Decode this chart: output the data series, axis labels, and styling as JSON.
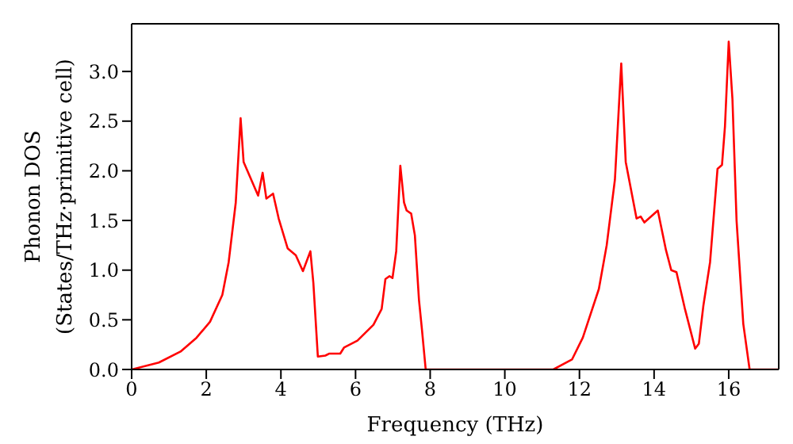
{
  "chart_data": {
    "type": "line",
    "xlabel": "Frequency (THz)",
    "ylabel": "Phonon DOS\n(States/THz·primitive cell)",
    "x": [
      0,
      0.73,
      1.31,
      1.74,
      2.1,
      2.43,
      2.6,
      2.79,
      2.92,
      3.0,
      3.39,
      3.51,
      3.61,
      3.79,
      3.94,
      4.18,
      4.4,
      4.59,
      4.79,
      4.87,
      4.99,
      5.19,
      5.3,
      5.59,
      5.69,
      6.05,
      6.48,
      6.7,
      6.8,
      6.91,
      6.99,
      7.09,
      7.2,
      7.3,
      7.37,
      7.49,
      7.59,
      7.7,
      7.78,
      7.88,
      11.3,
      11.8,
      12.09,
      12.52,
      12.73,
      12.95,
      13.12,
      13.24,
      13.53,
      13.64,
      13.74,
      14.1,
      14.32,
      14.46,
      14.6,
      14.82,
      15.1,
      15.2,
      15.32,
      15.5,
      15.7,
      15.82,
      15.9,
      16.0,
      16.1,
      16.21,
      16.39,
      16.56,
      17.34
    ],
    "series": [
      {
        "color": "#ff0000",
        "values": [
          0,
          0.07,
          0.18,
          0.32,
          0.48,
          0.75,
          1.08,
          1.68,
          2.53,
          2.09,
          1.75,
          1.98,
          1.72,
          1.77,
          1.52,
          1.22,
          1.15,
          0.99,
          1.19,
          0.87,
          0.13,
          0.14,
          0.16,
          0.16,
          0.22,
          0.29,
          0.45,
          0.61,
          0.91,
          0.94,
          0.92,
          1.19,
          2.05,
          1.68,
          1.6,
          1.57,
          1.35,
          0.7,
          0.4,
          0,
          0,
          0.1,
          0.32,
          0.81,
          1.25,
          1.91,
          3.08,
          2.09,
          1.52,
          1.54,
          1.48,
          1.6,
          1.2,
          1.0,
          0.98,
          0.62,
          0.21,
          0.26,
          0.64,
          1.08,
          2.02,
          2.06,
          2.45,
          3.3,
          2.72,
          1.5,
          0.46,
          0,
          0
        ]
      }
    ],
    "xlim": [
      0,
      17.34
    ],
    "xticks": [
      0,
      2,
      4,
      6,
      8,
      10,
      12,
      14,
      16
    ],
    "ylim": [
      0,
      3.48
    ],
    "yticks": [
      {
        "value": 0,
        "label": "0.0"
      },
      {
        "value": 0.5,
        "label": "0.5"
      },
      {
        "value": 1,
        "label": "1.0"
      },
      {
        "value": 1.5,
        "label": "1.5"
      },
      {
        "value": 2,
        "label": "2.0"
      },
      {
        "value": 2.5,
        "label": "2.5"
      },
      {
        "value": 3,
        "label": "3.0"
      }
    ],
    "marker": "none",
    "line_style": "solid"
  }
}
